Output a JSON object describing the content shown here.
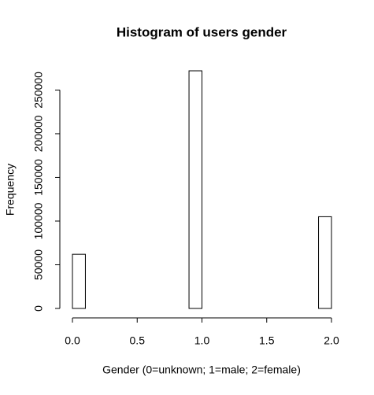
{
  "chart_data": {
    "type": "histogram",
    "title": "Histogram of users gender",
    "x_label": "Gender (0=unknown; 1=male; 2=female)",
    "y_label": "Frequency",
    "bins": [
      0,
      0.1,
      0.2,
      0.3,
      0.4,
      0.5,
      0.6,
      0.7,
      0.8,
      0.9,
      1.0,
      1.1,
      1.2,
      1.3,
      1.4,
      1.5,
      1.6,
      1.7,
      1.8,
      1.9,
      2.0
    ],
    "values": [
      62000,
      0,
      0,
      0,
      0,
      0,
      0,
      0,
      0,
      272000,
      0,
      0,
      0,
      0,
      0,
      0,
      0,
      0,
      0,
      105000
    ],
    "color": "#ffffff",
    "edge_color": "#000000",
    "xlim": [
      0,
      2
    ],
    "ylim": [
      0,
      272000
    ],
    "xticks": [
      {
        "value": 0,
        "label": "0.0"
      },
      {
        "value": 0.5,
        "label": "0.5"
      },
      {
        "value": 1,
        "label": "1.0"
      },
      {
        "value": 1.5,
        "label": "1.5"
      },
      {
        "value": 2,
        "label": "2.0"
      }
    ],
    "yticks": [
      0,
      50000,
      100000,
      150000,
      200000,
      250000
    ]
  }
}
